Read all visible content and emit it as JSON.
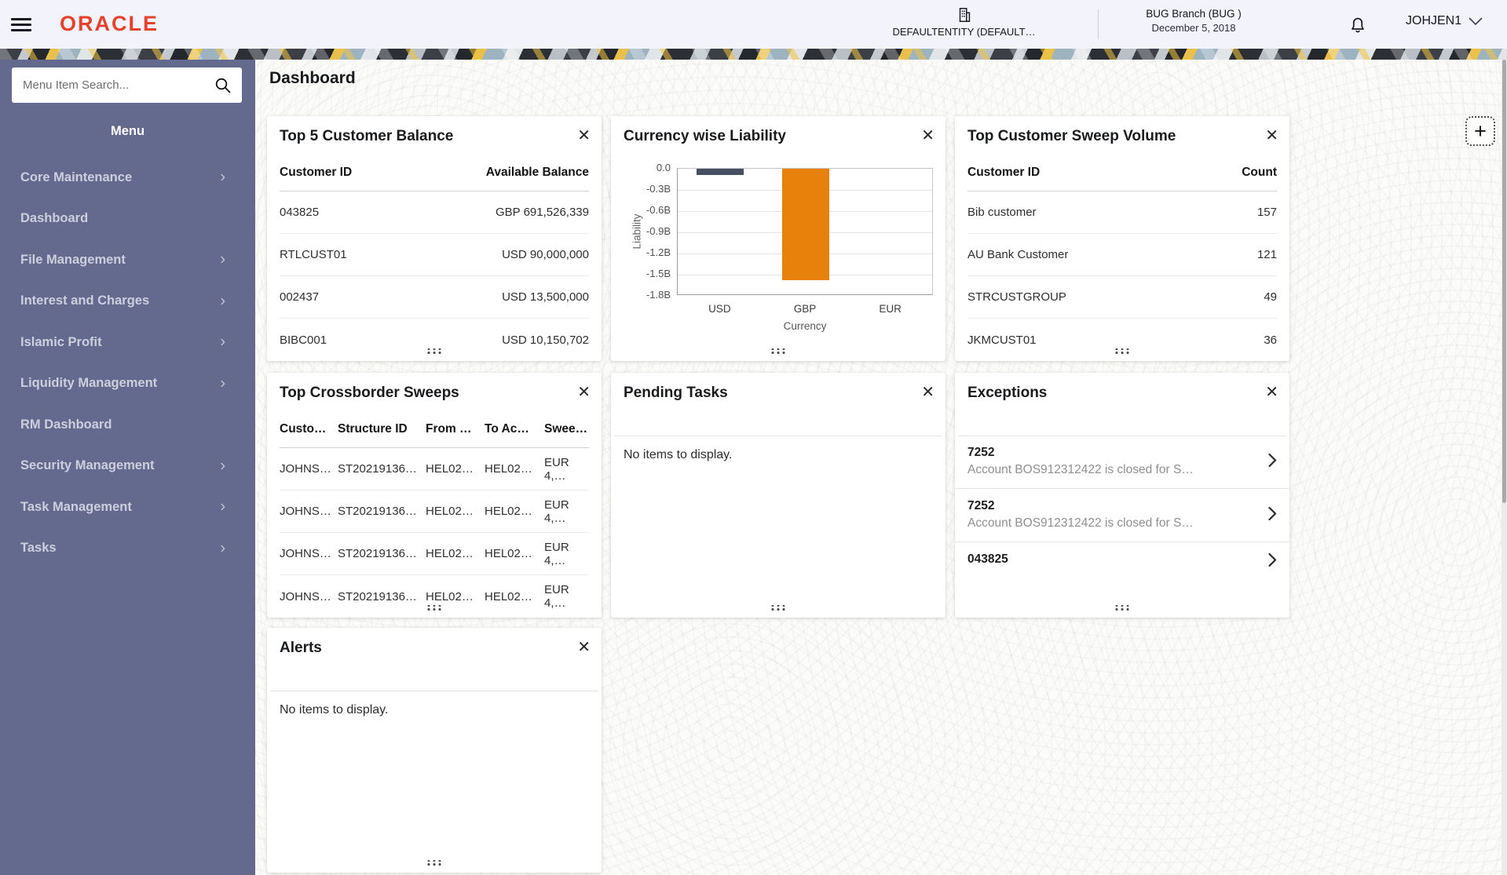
{
  "icons": {
    "close": "✕",
    "chevron_right": "›",
    "plus": "+"
  },
  "header": {
    "logo": "ORACLE",
    "entity_label": "DEFAULTENTITY (DEFAULT…",
    "branch_name": "BUG Branch  (BUG )",
    "branch_date": "December 5, 2018",
    "username": "JOHJEN1"
  },
  "sidebar": {
    "search_placeholder": "Menu Item Search...",
    "menu_title": "Menu",
    "items": [
      {
        "label": "Core Maintenance",
        "expandable": true
      },
      {
        "label": "Dashboard",
        "expandable": false
      },
      {
        "label": "File Management",
        "expandable": true
      },
      {
        "label": "Interest and Charges",
        "expandable": true
      },
      {
        "label": "Islamic Profit",
        "expandable": true
      },
      {
        "label": "Liquidity Management",
        "expandable": true
      },
      {
        "label": "RM Dashboard",
        "expandable": false
      },
      {
        "label": "Security Management",
        "expandable": true
      },
      {
        "label": "Task Management",
        "expandable": true
      },
      {
        "label": "Tasks",
        "expandable": true
      }
    ]
  },
  "page": {
    "title": "Dashboard"
  },
  "widgets": {
    "top5": {
      "title": "Top 5 Customer Balance",
      "table": {
        "columns": [
          "Customer ID",
          "Available Balance"
        ],
        "rows": [
          [
            "043825",
            "GBP 691,526,339"
          ],
          [
            "RTLCUST01",
            "USD 90,000,000"
          ],
          [
            "002437",
            "USD 13,500,000"
          ],
          [
            "BIBC001",
            "USD 10,150,702"
          ]
        ]
      }
    },
    "liability": {
      "title": "Currency wise Liability",
      "chart_data": {
        "type": "bar",
        "title": "Currency wise Liability",
        "categories": [
          "USD",
          "GBP",
          "EUR"
        ],
        "values": [
          -0.09,
          -1.58,
          0
        ],
        "xlabel": "Currency",
        "ylabel": "Liability",
        "ylim": [
          -1.8,
          0
        ],
        "yticks": [
          "0.0",
          "-0.3B",
          "-0.6B",
          "-0.9B",
          "-1.2B",
          "-1.5B",
          "-1.8B"
        ],
        "bar_colors": [
          "#475062",
          "#e8810c",
          "#e8810c"
        ],
        "grid": true,
        "legend": "none"
      }
    },
    "sweep_volume": {
      "title": "Top Customer Sweep Volume",
      "table": {
        "columns": [
          "Customer ID",
          "Count"
        ],
        "rows": [
          [
            "Bib customer",
            "157"
          ],
          [
            "AU Bank Customer",
            "121"
          ],
          [
            "STRCUSTGROUP",
            "49"
          ],
          [
            "JKMCUST01",
            "36"
          ]
        ]
      }
    },
    "crossborder": {
      "title": "Top Crossborder Sweeps",
      "table": {
        "columns": [
          "Custo…",
          "Structure ID",
          "From …",
          "To Ac…",
          "Swee…"
        ],
        "rows": [
          [
            "JOHNS…",
            "ST20219136…",
            "HEL02…",
            "HEL02…",
            "EUR 4,…"
          ],
          [
            "JOHNS…",
            "ST20219136…",
            "HEL02…",
            "HEL02…",
            "EUR 4,…"
          ],
          [
            "JOHNS…",
            "ST20219136…",
            "HEL02…",
            "HEL02…",
            "EUR 4,…"
          ],
          [
            "JOHNS…",
            "ST20219136…",
            "HEL02…",
            "HEL02…",
            "EUR 4,…"
          ]
        ]
      }
    },
    "pending": {
      "title": "Pending Tasks",
      "empty_text": "No items to display."
    },
    "exceptions": {
      "title": "Exceptions",
      "rows": [
        {
          "id": "7252",
          "desc": "Account BOS912312422 is closed for S…"
        },
        {
          "id": "7252",
          "desc": "Account BOS912312422 is closed for S…"
        },
        {
          "id": "043825",
          "desc": ""
        }
      ]
    },
    "alerts": {
      "title": "Alerts",
      "empty_text": "No items to display."
    }
  }
}
